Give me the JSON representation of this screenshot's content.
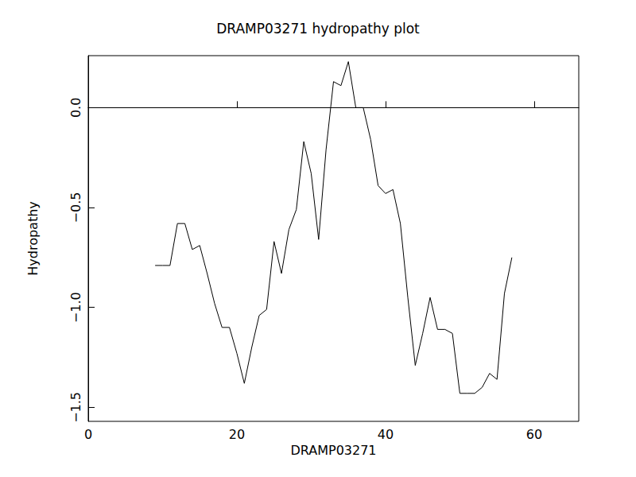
{
  "chart_data": {
    "type": "line",
    "title": "DRAMP03271 hydropathy plot",
    "x_label": "DRAMP03271",
    "y_label": "Hydropathy",
    "x": [
      9,
      10,
      11,
      12,
      13,
      14,
      15,
      16,
      17,
      18,
      19,
      20,
      21,
      22,
      23,
      24,
      25,
      26,
      27,
      28,
      29,
      30,
      31,
      32,
      33,
      34,
      35,
      36,
      37,
      38,
      39,
      40,
      41,
      42,
      43,
      44,
      45,
      46,
      47,
      48,
      49,
      50,
      51,
      52,
      53,
      54,
      55,
      56,
      57
    ],
    "values": [
      -0.79,
      -0.79,
      -0.79,
      -0.58,
      -0.58,
      -0.71,
      -0.69,
      -0.83,
      -0.98,
      -1.1,
      -1.1,
      -1.23,
      -1.38,
      -1.2,
      -1.04,
      -1.01,
      -0.67,
      -0.83,
      -0.61,
      -0.51,
      -0.17,
      -0.33,
      -0.66,
      -0.21,
      0.13,
      0.11,
      0.23,
      0.0,
      0.0,
      -0.16,
      -0.39,
      -0.43,
      -0.41,
      -0.58,
      -0.95,
      -1.29,
      -1.13,
      -0.95,
      -1.11,
      -1.11,
      -1.13,
      -1.43,
      -1.43,
      -1.43,
      -1.4,
      -1.33,
      -1.36,
      -0.93,
      -0.75
    ],
    "color": "#000000",
    "xlim": [
      0,
      66
    ],
    "xticks": [
      0,
      20,
      40,
      60
    ],
    "ylim": [
      -1.57,
      0.26
    ],
    "yticks": [
      {
        "value": -1.5,
        "label": "−1.5"
      },
      {
        "value": -1.0,
        "label": "−1.0"
      },
      {
        "value": -0.5,
        "label": "−0.5"
      },
      {
        "value": 0,
        "label": "0.0"
      }
    ],
    "grid": false
  }
}
